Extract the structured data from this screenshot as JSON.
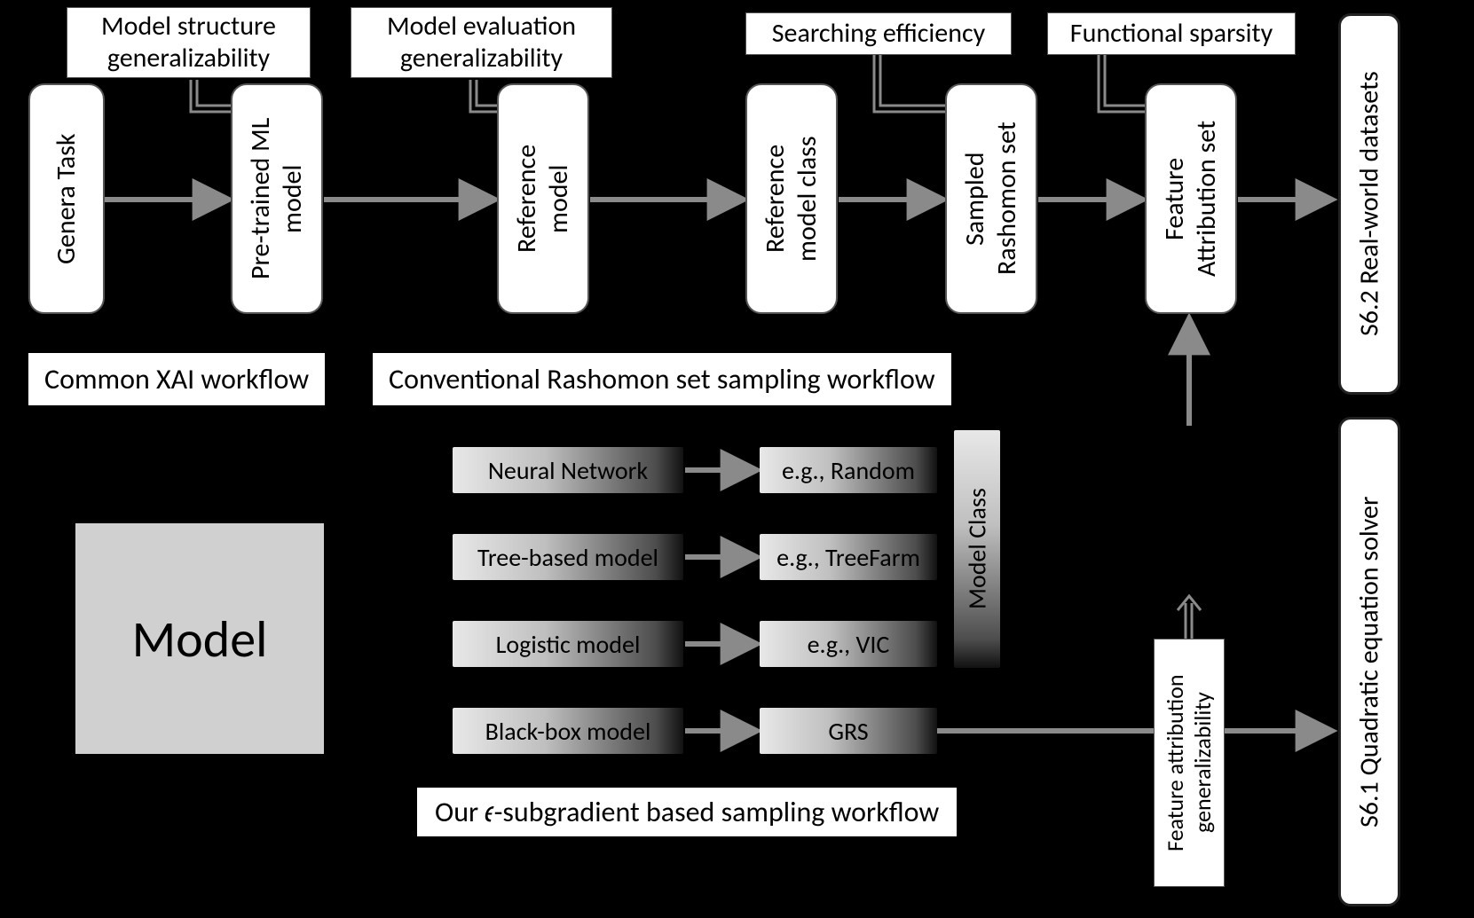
{
  "diagram": {
    "background_color": "#000000",
    "box_fill": "#ffffff",
    "box_border": "#555555",
    "arrow_color": "#8a8a8a",
    "arrow_width": 6,
    "gradient_stops": [
      "#e8e8e8",
      "#bfbfbf",
      "#4d4d4d",
      "#111111"
    ],
    "font_family": "Segoe UI"
  },
  "top_nodes": {
    "n1": "Genera Task",
    "n2": "Pre-trained ML\nmodel",
    "n3": "Reference\nmodel",
    "n4": "Reference\nmodel class",
    "n5": "Sampled\nRashomon set",
    "n6": "Feature\nAttribution set"
  },
  "notes": {
    "a1": "Model structure\ngeneralizability",
    "a2": "Model evaluation\ngeneralizability",
    "a3": "Searching efficiency",
    "a4": "Functional sparsity",
    "a5": "Feature attribution\ngeneralizability"
  },
  "sections": {
    "s1": "Common XAI workflow",
    "s2": "Conventional Rashomon set sampling workflow",
    "s3": "Our 𝜖-subgradient based sampling workflow"
  },
  "gradient_rows": {
    "left": [
      "Neural Network",
      "Tree-based model",
      "Logistic model",
      "Black-box model"
    ],
    "right": [
      "e.g., Random",
      "e.g., TreeFarm",
      "e.g., VIC",
      "GRS"
    ],
    "class_label": "Model Class"
  },
  "model_box": "Model",
  "right_labels": {
    "r1": "S6.2 Real-world datasets",
    "r2": "S6.1 Quadratic equation solver"
  }
}
